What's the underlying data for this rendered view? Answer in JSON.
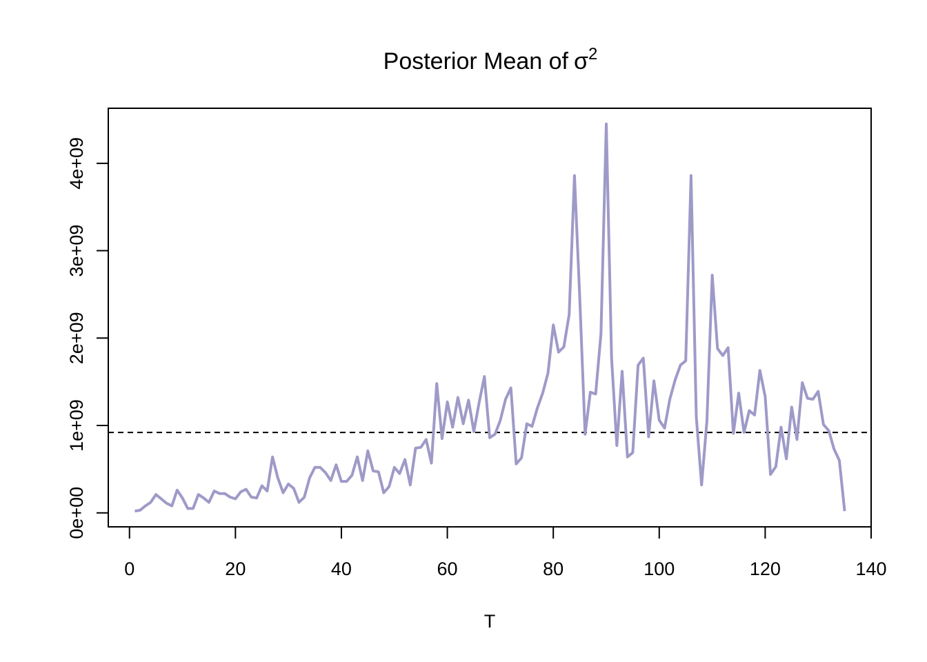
{
  "chart_data": {
    "type": "line",
    "title": "Posterior Mean of",
    "title_symbol": "σ",
    "title_superscript": "2",
    "xlabel": "T",
    "ylabel": "",
    "xlim": [
      -4,
      140
    ],
    "ylim": [
      -160000000,
      4630000000
    ],
    "x_ticks": [
      0,
      20,
      40,
      60,
      80,
      100,
      120,
      140
    ],
    "x_tick_labels": [
      "0",
      "20",
      "40",
      "60",
      "80",
      "100",
      "120",
      "140"
    ],
    "y_ticks": [
      0,
      1000000000,
      2000000000,
      3000000000,
      4000000000
    ],
    "y_tick_labels": [
      "0e+00",
      "1e+09",
      "2e+09",
      "3e+09",
      "4e+09"
    ],
    "grid": false,
    "reference_line": {
      "style": "dashed",
      "color": "#000000",
      "y": 920000000
    },
    "series": [
      {
        "color": "#9E9AC8",
        "x": [
          1,
          2,
          3,
          4,
          5,
          6,
          7,
          8,
          9,
          10,
          11,
          12,
          13,
          14,
          15,
          16,
          17,
          18,
          19,
          20,
          21,
          22,
          23,
          24,
          25,
          26,
          27,
          28,
          29,
          30,
          31,
          32,
          33,
          34,
          35,
          36,
          37,
          38,
          39,
          40,
          41,
          42,
          43,
          44,
          45,
          46,
          47,
          48,
          49,
          50,
          51,
          52,
          53,
          54,
          55,
          56,
          57,
          58,
          59,
          60,
          61,
          62,
          63,
          64,
          65,
          66,
          67,
          68,
          69,
          70,
          71,
          72,
          73,
          74,
          75,
          76,
          77,
          78,
          79,
          80,
          81,
          82,
          83,
          84,
          85,
          86,
          87,
          88,
          89,
          90,
          91,
          92,
          93,
          94,
          95,
          96,
          97,
          98,
          99,
          100,
          101,
          102,
          103,
          104,
          105,
          106,
          107,
          108,
          109,
          110,
          111,
          112,
          113,
          114,
          115,
          116,
          117,
          118,
          119,
          120,
          121,
          122,
          123,
          124,
          125,
          126,
          127,
          128,
          129,
          130,
          131,
          132,
          133,
          134,
          135
        ],
        "values": [
          0.02,
          0.03,
          0.08,
          0.12,
          0.21,
          0.16,
          0.11,
          0.08,
          0.26,
          0.17,
          0.05,
          0.05,
          0.21,
          0.17,
          0.12,
          0.25,
          0.22,
          0.22,
          0.18,
          0.16,
          0.24,
          0.27,
          0.18,
          0.17,
          0.31,
          0.25,
          0.64,
          0.4,
          0.23,
          0.33,
          0.28,
          0.12,
          0.18,
          0.4,
          0.52,
          0.52,
          0.46,
          0.37,
          0.55,
          0.36,
          0.36,
          0.43,
          0.64,
          0.37,
          0.71,
          0.48,
          0.47,
          0.23,
          0.3,
          0.52,
          0.45,
          0.61,
          0.32,
          0.74,
          0.75,
          0.84,
          0.57,
          1.48,
          0.85,
          1.27,
          0.98,
          1.32,
          1.02,
          1.29,
          0.93,
          1.26,
          1.56,
          0.86,
          0.9,
          1.06,
          1.3,
          1.43,
          0.56,
          0.63,
          1.02,
          0.99,
          1.2,
          1.37,
          1.6,
          2.15,
          1.84,
          1.9,
          2.27,
          3.86,
          2.45,
          0.9,
          1.38,
          1.36,
          2.05,
          4.45,
          1.77,
          0.77,
          1.62,
          0.64,
          0.69,
          1.69,
          1.77,
          0.87,
          1.51,
          1.06,
          0.97,
          1.3,
          1.52,
          1.69,
          1.74,
          3.86,
          1.1,
          0.32,
          1.05,
          2.72,
          1.88,
          1.8,
          1.89,
          0.91,
          1.37,
          0.92,
          1.17,
          1.12,
          1.63,
          1.33,
          0.44,
          0.53,
          0.98,
          0.62,
          1.21,
          0.84,
          1.49,
          1.31,
          1.3,
          1.39,
          1.01,
          0.94,
          0.73,
          0.6,
          0.02
        ]
      }
    ]
  }
}
